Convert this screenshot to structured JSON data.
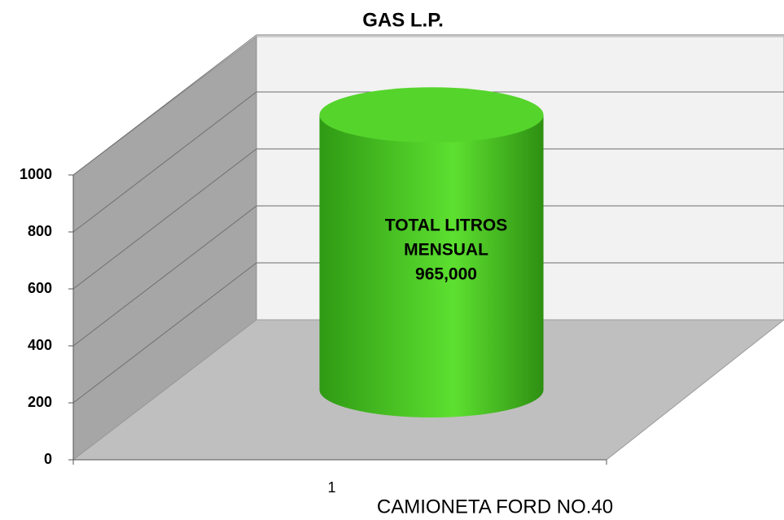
{
  "chart_data": {
    "type": "bar",
    "title": "GAS L.P.",
    "categories": [
      "1"
    ],
    "values": [
      965
    ],
    "color": "#4fd42a",
    "x_label": "CAMIONETA  FORD NO.40",
    "annotation": [
      "TOTAL LITROS",
      "MENSUAL",
      "965,000"
    ],
    "ylim": [
      0,
      1000
    ],
    "yticks": [
      0,
      200,
      400,
      600,
      800,
      1000
    ],
    "grid": true
  }
}
